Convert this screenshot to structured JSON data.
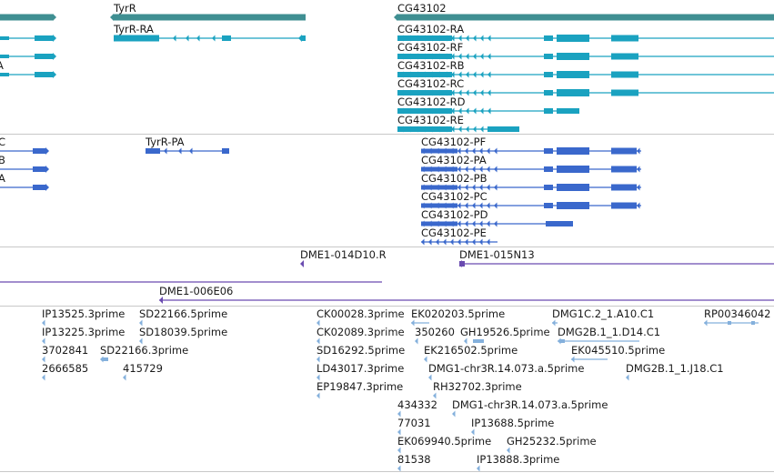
{
  "colors": {
    "gene": "#3f8f92",
    "flybase_transcript": "#1aa2c0",
    "refseq_transcript": "#3a68cc",
    "clone": "#6a4bb0",
    "est": "#84b0dc",
    "divider": "#c8c8c8"
  },
  "tracks": {
    "genes": {
      "labels": [
        "TyrR",
        "CG43102"
      ]
    },
    "flybase_transcripts": {
      "labels": [
        "TyrR-RA",
        "CG43102-RA",
        "CG43102-RF",
        "CG43102-RB",
        "CG43102-RC",
        "CG43102-RD",
        "CG43102-RE"
      ],
      "left_partial_labels": [
        "A"
      ]
    },
    "refseq_transcripts": {
      "labels": [
        "TyrR-PA",
        "CG43102-PF",
        "CG43102-PA",
        "CG43102-PB",
        "CG43102-PC",
        "CG43102-PD",
        "CG43102-PE"
      ],
      "left_partial_labels": [
        "C",
        "B",
        "A"
      ]
    },
    "bac_clones": {
      "labels": [
        "DME1-014D10.R",
        "DME1-015N13",
        "DME1-006E06"
      ]
    },
    "est": {
      "labels": [
        "IP13525.3prime",
        "SD22166.5prime",
        "CK00028.3prime",
        "EK020203.5prime",
        "DMG1C.2_1.A10.C1",
        "RP00346042",
        "IP13225.3prime",
        "SD18039.5prime",
        "CK02089.3prime",
        "350260",
        "GH19526.5prime",
        "DMG2B.1_1.D14.C1",
        "3702841",
        "SD22166.3prime",
        "SD16292.5prime",
        "EK216502.5prime",
        "EK045510.5prime",
        "2666585",
        "415729",
        "LD43017.3prime",
        "DMG1-chr3R.14.073.a.5prime",
        "DMG2B.1_1.J18.C1",
        "EP19847.3prime",
        "RH32702.3prime",
        "434332",
        "DMG1-chr3R.14.073.a.5prime",
        "77031",
        "IP13688.5prime",
        "EK069940.5prime",
        "GH25232.5prime",
        "81538",
        "IP13888.3prime"
      ]
    }
  }
}
